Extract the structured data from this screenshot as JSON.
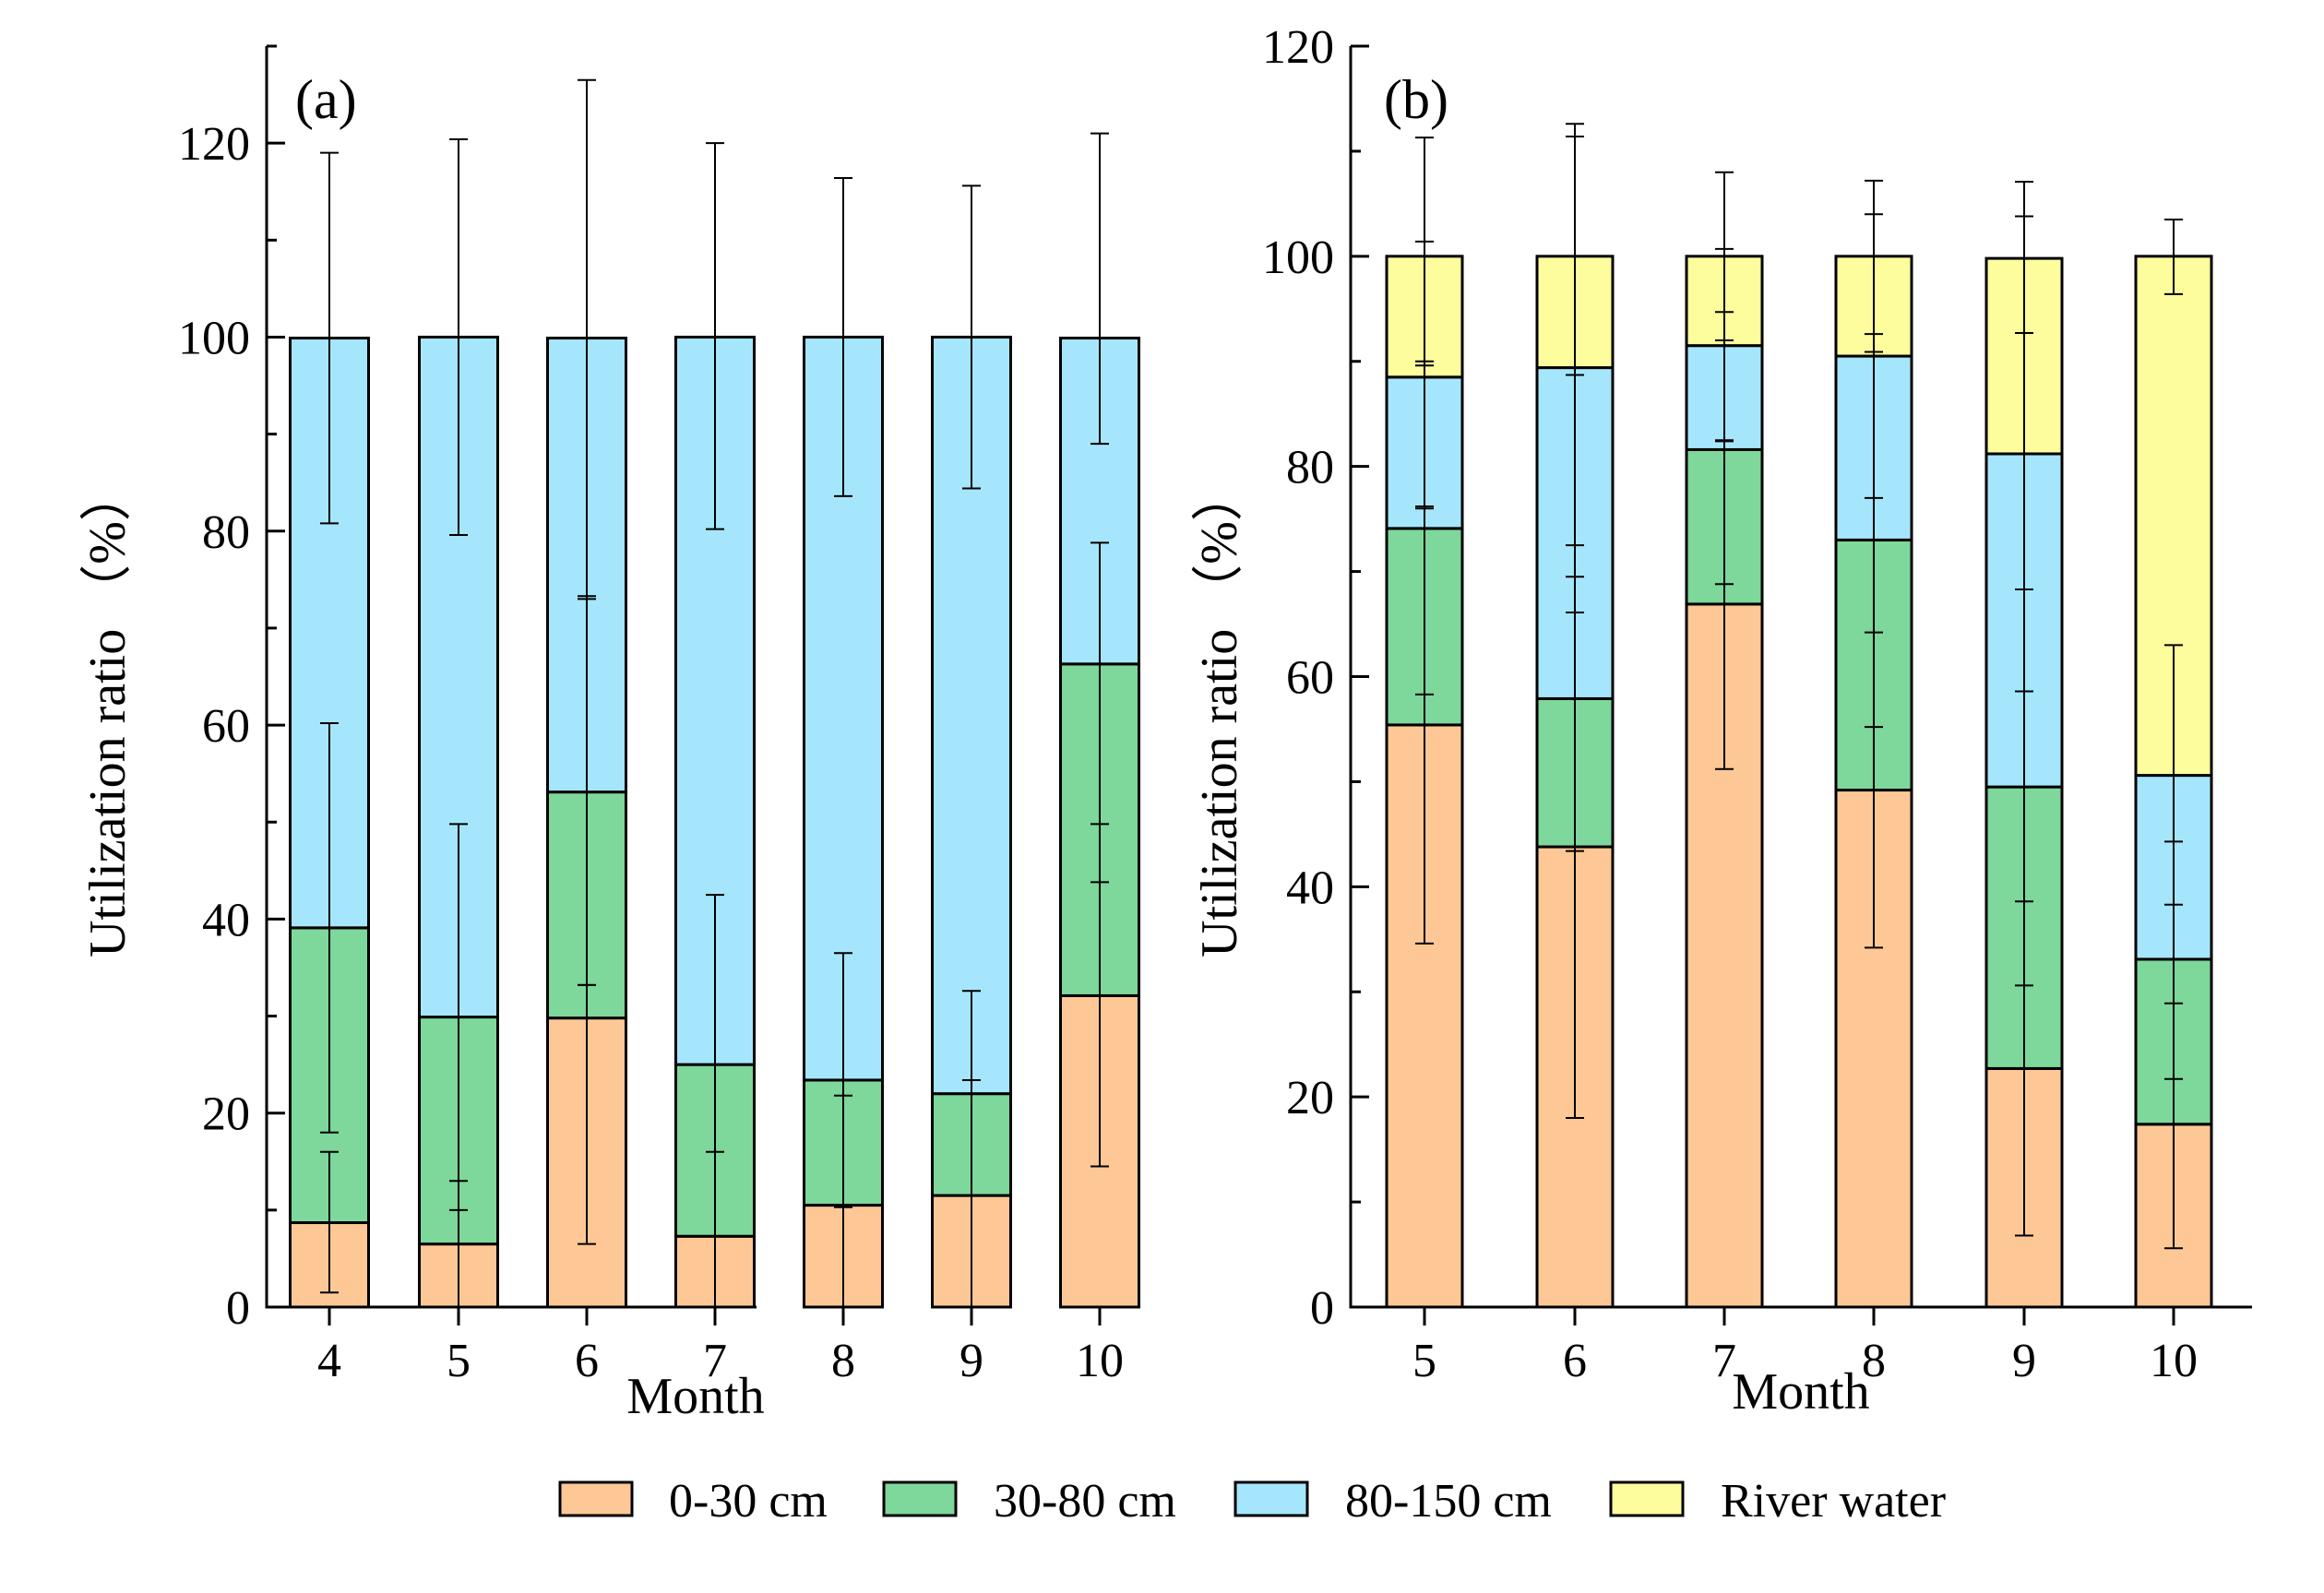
{
  "colors": {
    "0-30 cm": "#FDC896",
    "30-80 cm": "#7ED79B",
    "80-150 cm": "#A6E6FC",
    "River water": "#FDFD9E",
    "axis": "#000000"
  },
  "legend": {
    "items": [
      {
        "label": "0-30 cm",
        "key": "0-30 cm"
      },
      {
        "label": "30-80 cm",
        "key": "30-80 cm"
      },
      {
        "label": "80-150 cm",
        "key": "80-150 cm"
      },
      {
        "label": "River water",
        "key": "River water"
      }
    ]
  },
  "chart_data": [
    {
      "type": "bar",
      "stacked": true,
      "panel_label": "(a)",
      "xlabel": "Month",
      "ylabel": "Utilization ratio （%）",
      "ylim": [
        0,
        130
      ],
      "yticks": [
        0,
        20,
        40,
        60,
        80,
        100,
        120
      ],
      "categories": [
        "4",
        "5",
        "6",
        "7",
        "8",
        "9",
        "10"
      ],
      "series": [
        {
          "name": "0-30 cm",
          "values": [
            8.7,
            6.5,
            29.8,
            7.3,
            10.5,
            11.5,
            32.1
          ],
          "err_low": [
            1.5,
            0,
            6.5,
            0,
            0,
            0,
            14.5
          ],
          "err_high": [
            16.0,
            13.0,
            33.2,
            16.0,
            21.8,
            23.4,
            49.8
          ]
        },
        {
          "name": "30-80 cm",
          "values": [
            30.4,
            23.4,
            23.3,
            17.7,
            12.9,
            10.5,
            34.2
          ],
          "err_low": [
            18.0,
            10.0,
            33.2,
            7.3,
            10.3,
            11.5,
            43.8
          ],
          "err_high": [
            60.2,
            49.8,
            73.3,
            42.5,
            36.5,
            32.6,
            78.8
          ]
        },
        {
          "name": "80-150 cm",
          "values": [
            60.8,
            70.1,
            46.8,
            75.0,
            76.6,
            78.0,
            33.6
          ],
          "err_low": [
            80.8,
            79.6,
            73.0,
            80.2,
            83.6,
            84.4,
            89.0
          ],
          "err_high": [
            119.0,
            120.4,
            126.5,
            120.0,
            116.4,
            115.6,
            121.0
          ]
        }
      ]
    },
    {
      "type": "bar",
      "stacked": true,
      "panel_label": "(b)",
      "xlabel": "Month",
      "ylabel": "Utilization ratio （%）",
      "ylim": [
        0,
        120
      ],
      "yticks": [
        0,
        20,
        40,
        60,
        80,
        100,
        120
      ],
      "categories": [
        "5",
        "6",
        "7",
        "8",
        "9",
        "10"
      ],
      "series": [
        {
          "name": "0-30 cm",
          "values": [
            55.4,
            43.8,
            66.9,
            49.2,
            22.7,
            17.4
          ],
          "err_low": [
            34.6,
            18.0,
            51.2,
            34.2,
            6.8,
            5.6
          ],
          "err_high": [
            76.0,
            69.5,
            82.5,
            64.2,
            38.6,
            28.9
          ]
        },
        {
          "name": "30-80 cm",
          "values": [
            18.7,
            14.1,
            14.7,
            23.8,
            26.8,
            15.7
          ],
          "err_low": [
            58.3,
            43.4,
            68.8,
            55.2,
            30.6,
            21.7
          ],
          "err_high": [
            90.0,
            72.5,
            94.7,
            92.6,
            68.3,
            44.3
          ]
        },
        {
          "name": "80-150 cm",
          "values": [
            14.4,
            31.5,
            9.9,
            17.5,
            31.7,
            17.5
          ],
          "err_low": [
            76.2,
            66.1,
            92.0,
            77.0,
            58.6,
            38.3
          ],
          "err_high": [
            101.4,
            111.4,
            100.7,
            104.0,
            103.8,
            63.0
          ]
        },
        {
          "name": "River water",
          "values": [
            11.5,
            10.6,
            8.5,
            9.5,
            18.6,
            49.4
          ],
          "err_low": [
            89.6,
            88.7,
            82.4,
            90.9,
            92.7,
            96.4
          ],
          "err_high": [
            111.3,
            112.6,
            108.0,
            107.2,
            107.1,
            103.5
          ]
        }
      ]
    }
  ]
}
